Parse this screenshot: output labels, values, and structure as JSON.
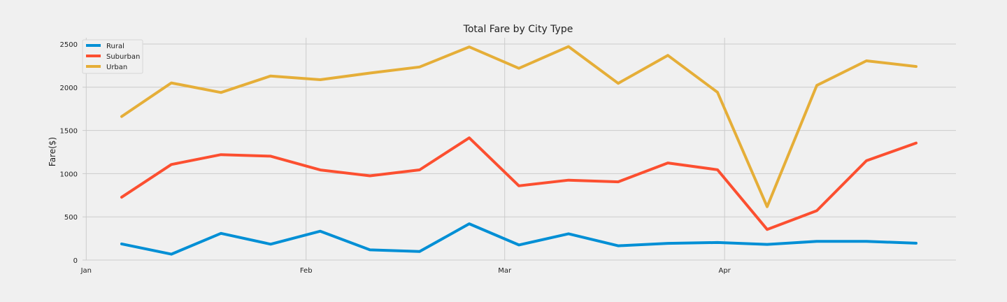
{
  "chart_data": {
    "type": "line",
    "title": "Total Fare by City Type",
    "ylabel": "Fare($)",
    "xlabel": "",
    "ylim": [
      0,
      2550
    ],
    "yticks": [
      0,
      500,
      1000,
      1500,
      2000,
      2500
    ],
    "grid": true,
    "legend_position": "top-left",
    "x_tick_labels": [
      "Jan",
      "Feb",
      "Mar",
      "Apr"
    ],
    "x": [
      "2019-01-06",
      "2019-01-13",
      "2019-01-20",
      "2019-01-27",
      "2019-02-03",
      "2019-02-10",
      "2019-02-17",
      "2019-02-24",
      "2019-03-03",
      "2019-03-10",
      "2019-03-17",
      "2019-03-24",
      "2019-03-31",
      "2019-04-07",
      "2019-04-14",
      "2019-04-21",
      "2019-04-28"
    ],
    "series": [
      {
        "name": "Rural",
        "color": "#008fd5",
        "values": [
          187,
          68,
          309,
          184,
          334,
          118,
          99,
          420,
          175,
          304,
          165,
          193,
          203,
          181,
          216,
          216,
          195
        ]
      },
      {
        "name": "Suburban",
        "color": "#fc4f30",
        "values": [
          727,
          1106,
          1220,
          1202,
          1043,
          975,
          1044,
          1414,
          859,
          925,
          905,
          1124,
          1045,
          354,
          571,
          1150,
          1354
        ]
      },
      {
        "name": "Urban",
        "color": "#e5ae38",
        "values": [
          1662,
          2050,
          1939,
          2130,
          2087,
          2164,
          2235,
          2467,
          2219,
          2471,
          2045,
          2369,
          1942,
          617,
          2021,
          2306,
          2240
        ]
      }
    ]
  }
}
